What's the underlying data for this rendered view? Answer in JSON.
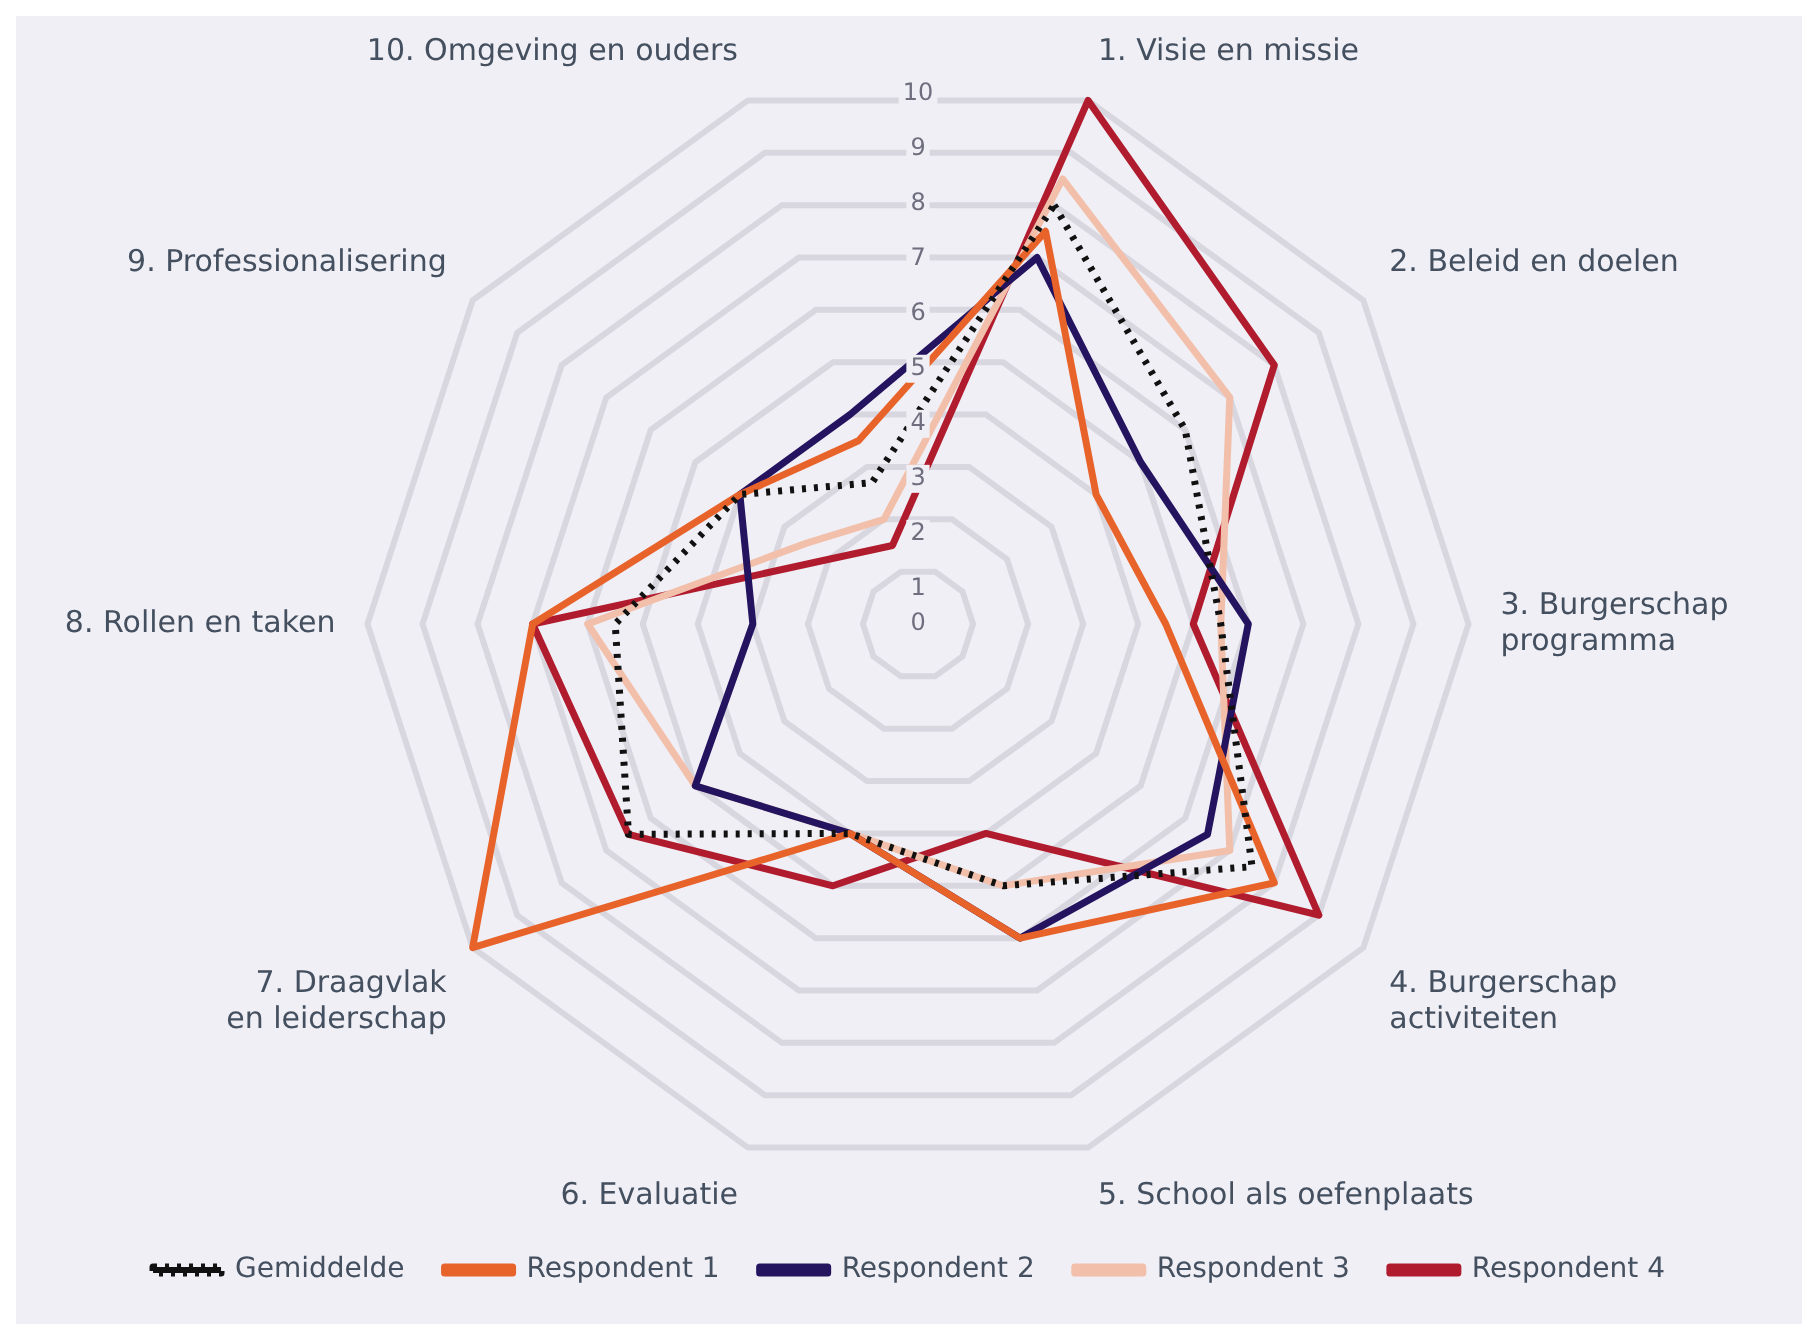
{
  "chart_data": {
    "type": "radar",
    "categories": [
      "1. Visie en missie",
      "2. Beleid en doelen",
      "3. Burgerschap\nprogramma",
      "4. Burgerschap\nactiviteiten",
      "5. School als oefenplaats",
      "6. Evaluatie",
      "7. Draagvlak\nen leiderschap",
      "8. Rollen en taken",
      "9. Professionalisering",
      "10. Omgeving en ouders"
    ],
    "series": [
      {
        "name": "Gemiddelde",
        "color": "#111111",
        "line_style": "dotted",
        "values": [
          8,
          6,
          5.5,
          7.5,
          5,
          4,
          6.5,
          5.5,
          4,
          2.7
        ]
      },
      {
        "name": "Respondent 1",
        "color": "#e8632a",
        "line_style": "solid",
        "values": [
          7.5,
          4,
          4.5,
          8,
          6,
          4,
          10,
          7,
          4,
          3.5
        ]
      },
      {
        "name": "Respondent 2",
        "color": "#24135f",
        "line_style": "solid",
        "values": [
          7,
          5,
          6,
          6.5,
          6,
          4,
          5,
          3,
          4,
          4
        ]
      },
      {
        "name": "Respondent 3",
        "color": "#f2c0aa",
        "line_style": "solid",
        "values": [
          8.5,
          7,
          5.5,
          7,
          5,
          4,
          5,
          6,
          2.5,
          2
        ]
      },
      {
        "name": "Respondent 4",
        "color": "#b01c2e",
        "line_style": "solid",
        "values": [
          10,
          8,
          5,
          9,
          4,
          5,
          6.5,
          7,
          2,
          1.5
        ]
      }
    ],
    "ylim": [
      0,
      10
    ],
    "yticks": [
      0,
      1,
      2,
      3,
      4,
      5,
      6,
      7,
      8,
      9,
      10
    ],
    "grid": true,
    "legend": "bottom",
    "marker": "none"
  }
}
